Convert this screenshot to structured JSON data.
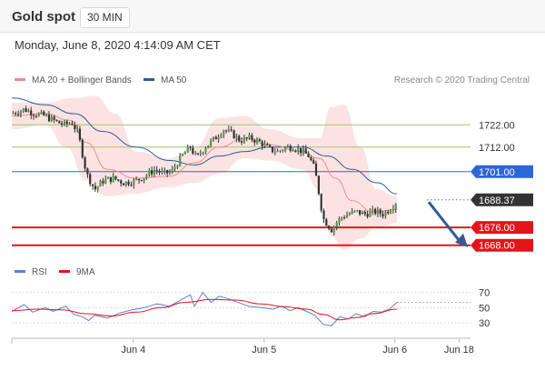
{
  "header": {
    "title": "Gold spot",
    "timeframe": "30 MIN",
    "timestamp": "Monday, June 8, 2020 4:14:09 AM CET"
  },
  "chart_data": [
    {
      "type": "candlestick",
      "legend": [
        {
          "name": "MA 20 + Bollinger Bands",
          "color": "#f28c8c"
        },
        {
          "name": "MA 50",
          "color": "#2f5b97"
        }
      ],
      "credit": "Research © 2020 Trading Central",
      "ylim": [
        1663,
        1738
      ],
      "x_ticks": [
        {
          "label": "Jun 4",
          "x": 0.265
        },
        {
          "label": "Jun 5",
          "x": 0.55
        },
        {
          "label": "Jun 6",
          "x": 0.835
        },
        {
          "label": "Jun 18",
          "x": 0.975
        }
      ],
      "levels": [
        {
          "value": 1722.0,
          "label": "1722.00",
          "kind": "resistance",
          "color": "#9dc76b"
        },
        {
          "value": 1712.0,
          "label": "1712.00",
          "kind": "resistance",
          "color": "#9dc76b"
        },
        {
          "value": 1701.0,
          "label": "1701.00",
          "kind": "pivot",
          "color": "#2e66d6"
        },
        {
          "value": 1676.0,
          "label": "1676.00",
          "kind": "support",
          "color": "#e5141b"
        },
        {
          "value": 1668.0,
          "label": "1668.00",
          "kind": "support",
          "color": "#e5141b"
        }
      ],
      "last_price": {
        "value": 1688.37,
        "label": "1688.37",
        "color": "#333333"
      },
      "forecast_arrow": {
        "from": 1689,
        "to": 1668,
        "color": "#2f5b97"
      },
      "close_path": [
        [
          0.0,
          1727
        ],
        [
          0.03,
          1729
        ],
        [
          0.055,
          1727
        ],
        [
          0.08,
          1726
        ],
        [
          0.1,
          1724
        ],
        [
          0.125,
          1722
        ],
        [
          0.145,
          1723
        ],
        [
          0.16,
          1718
        ],
        [
          0.18,
          1700
        ],
        [
          0.2,
          1693
        ],
        [
          0.22,
          1697
        ],
        [
          0.245,
          1698
        ],
        [
          0.27,
          1696
        ],
        [
          0.3,
          1697
        ],
        [
          0.32,
          1699
        ],
        [
          0.345,
          1702
        ],
        [
          0.365,
          1700
        ],
        [
          0.385,
          1701
        ],
        [
          0.41,
          1708
        ],
        [
          0.43,
          1712
        ],
        [
          0.445,
          1707
        ],
        [
          0.465,
          1712
        ],
        [
          0.49,
          1716
        ],
        [
          0.51,
          1720
        ],
        [
          0.53,
          1718
        ],
        [
          0.55,
          1715
        ],
        [
          0.575,
          1716
        ],
        [
          0.6,
          1714
        ],
        [
          0.62,
          1711
        ],
        [
          0.64,
          1710
        ],
        [
          0.66,
          1712
        ],
        [
          0.68,
          1712
        ],
        [
          0.7,
          1710
        ],
        [
          0.715,
          1708
        ],
        [
          0.73,
          1702
        ],
        [
          0.75,
          1680
        ],
        [
          0.77,
          1675
        ],
        [
          0.79,
          1680
        ],
        [
          0.81,
          1682
        ],
        [
          0.83,
          1683
        ],
        [
          0.85,
          1682
        ],
        [
          0.875,
          1683
        ],
        [
          0.895,
          1682
        ],
        [
          0.915,
          1685
        ],
        [
          0.928,
          1688
        ]
      ],
      "ma20_path": [
        [
          0.0,
          1726
        ],
        [
          0.08,
          1727
        ],
        [
          0.14,
          1724
        ],
        [
          0.18,
          1714
        ],
        [
          0.23,
          1702
        ],
        [
          0.3,
          1698
        ],
        [
          0.38,
          1699
        ],
        [
          0.44,
          1705
        ],
        [
          0.5,
          1712
        ],
        [
          0.56,
          1716
        ],
        [
          0.62,
          1713
        ],
        [
          0.7,
          1710
        ],
        [
          0.74,
          1707
        ],
        [
          0.78,
          1698
        ],
        [
          0.82,
          1688
        ],
        [
          0.87,
          1683
        ],
        [
          0.928,
          1684
        ]
      ],
      "bb_upper_path": [
        [
          0.0,
          1732
        ],
        [
          0.08,
          1732
        ],
        [
          0.15,
          1734
        ],
        [
          0.2,
          1735
        ],
        [
          0.25,
          1727
        ],
        [
          0.3,
          1710
        ],
        [
          0.38,
          1707
        ],
        [
          0.44,
          1712
        ],
        [
          0.5,
          1725
        ],
        [
          0.56,
          1726
        ],
        [
          0.62,
          1720
        ],
        [
          0.7,
          1716
        ],
        [
          0.74,
          1716
        ],
        [
          0.77,
          1730
        ],
        [
          0.8,
          1731
        ],
        [
          0.84,
          1712
        ],
        [
          0.88,
          1693
        ],
        [
          0.928,
          1690
        ]
      ],
      "bb_lower_path": [
        [
          0.0,
          1720
        ],
        [
          0.08,
          1722
        ],
        [
          0.13,
          1712
        ],
        [
          0.18,
          1697
        ],
        [
          0.23,
          1690
        ],
        [
          0.29,
          1691
        ],
        [
          0.38,
          1694
        ],
        [
          0.44,
          1696
        ],
        [
          0.5,
          1700
        ],
        [
          0.56,
          1707
        ],
        [
          0.62,
          1706
        ],
        [
          0.7,
          1702
        ],
        [
          0.74,
          1693
        ],
        [
          0.77,
          1672
        ],
        [
          0.8,
          1666
        ],
        [
          0.84,
          1671
        ],
        [
          0.88,
          1676
        ],
        [
          0.928,
          1678
        ]
      ],
      "ma50_path": [
        [
          0.0,
          1734
        ],
        [
          0.08,
          1731
        ],
        [
          0.15,
          1727
        ],
        [
          0.22,
          1719
        ],
        [
          0.3,
          1712
        ],
        [
          0.38,
          1706
        ],
        [
          0.44,
          1704
        ],
        [
          0.5,
          1708
        ],
        [
          0.56,
          1710
        ],
        [
          0.62,
          1712
        ],
        [
          0.7,
          1712
        ],
        [
          0.76,
          1708
        ],
        [
          0.82,
          1702
        ],
        [
          0.88,
          1696
        ],
        [
          0.928,
          1691
        ]
      ]
    },
    {
      "type": "line",
      "legend": [
        {
          "name": "RSI",
          "color": "#5b7fd6"
        },
        {
          "name": "9MA",
          "color": "#e5141b"
        }
      ],
      "ylim": [
        18,
        78
      ],
      "y_ticks": [
        70,
        50,
        30
      ],
      "rsi_path": [
        [
          0.0,
          45
        ],
        [
          0.03,
          54
        ],
        [
          0.05,
          44
        ],
        [
          0.08,
          50
        ],
        [
          0.1,
          45
        ],
        [
          0.13,
          52
        ],
        [
          0.15,
          41
        ],
        [
          0.17,
          38
        ],
        [
          0.185,
          33
        ],
        [
          0.2,
          40
        ],
        [
          0.23,
          36
        ],
        [
          0.26,
          43
        ],
        [
          0.29,
          47
        ],
        [
          0.32,
          50
        ],
        [
          0.35,
          55
        ],
        [
          0.38,
          52
        ],
        [
          0.41,
          61
        ],
        [
          0.43,
          67
        ],
        [
          0.44,
          52
        ],
        [
          0.46,
          70
        ],
        [
          0.48,
          57
        ],
        [
          0.5,
          65
        ],
        [
          0.52,
          62
        ],
        [
          0.54,
          58
        ],
        [
          0.57,
          52
        ],
        [
          0.6,
          50
        ],
        [
          0.63,
          48
        ],
        [
          0.65,
          52
        ],
        [
          0.67,
          46
        ],
        [
          0.69,
          50
        ],
        [
          0.71,
          45
        ],
        [
          0.73,
          40
        ],
        [
          0.75,
          28
        ],
        [
          0.77,
          26
        ],
        [
          0.79,
          38
        ],
        [
          0.81,
          35
        ],
        [
          0.83,
          42
        ],
        [
          0.85,
          38
        ],
        [
          0.87,
          45
        ],
        [
          0.89,
          44
        ],
        [
          0.91,
          48
        ],
        [
          0.928,
          57
        ]
      ],
      "ma9_path": [
        [
          0.0,
          46
        ],
        [
          0.06,
          48
        ],
        [
          0.12,
          47
        ],
        [
          0.18,
          42
        ],
        [
          0.24,
          39
        ],
        [
          0.3,
          44
        ],
        [
          0.36,
          50
        ],
        [
          0.42,
          57
        ],
        [
          0.48,
          61
        ],
        [
          0.54,
          60
        ],
        [
          0.6,
          55
        ],
        [
          0.66,
          51
        ],
        [
          0.71,
          48
        ],
        [
          0.75,
          41
        ],
        [
          0.79,
          34
        ],
        [
          0.83,
          37
        ],
        [
          0.87,
          42
        ],
        [
          0.928,
          48
        ]
      ]
    }
  ]
}
